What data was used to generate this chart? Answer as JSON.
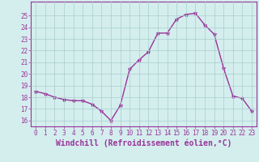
{
  "x": [
    0,
    1,
    2,
    3,
    4,
    5,
    6,
    7,
    8,
    9,
    10,
    11,
    12,
    13,
    14,
    15,
    16,
    17,
    18,
    19,
    20,
    21,
    22,
    23
  ],
  "y": [
    18.5,
    18.3,
    18.0,
    17.8,
    17.7,
    17.7,
    17.4,
    16.8,
    16.0,
    17.3,
    20.4,
    21.2,
    21.9,
    23.5,
    23.5,
    24.7,
    25.1,
    25.2,
    24.2,
    23.4,
    20.5,
    18.1,
    17.9,
    16.8
  ],
  "line_color": "#993399",
  "marker": "*",
  "marker_size": 3.5,
  "bg_color": "#d4eeee",
  "grid_color": "#aacccc",
  "xlabel": "Windchill (Refroidissement éolien,°C)",
  "xlabel_fontsize": 7,
  "ylim": [
    15.5,
    26.2
  ],
  "yticks": [
    16,
    17,
    18,
    19,
    20,
    21,
    22,
    23,
    24,
    25
  ],
  "xticks": [
    0,
    1,
    2,
    3,
    4,
    5,
    6,
    7,
    8,
    9,
    10,
    11,
    12,
    13,
    14,
    15,
    16,
    17,
    18,
    19,
    20,
    21,
    22,
    23
  ],
  "tick_fontsize": 5.5,
  "line_width": 1.0,
  "axis_color": "#993399",
  "tick_color": "#993399",
  "xlim": [
    -0.5,
    23.5
  ]
}
